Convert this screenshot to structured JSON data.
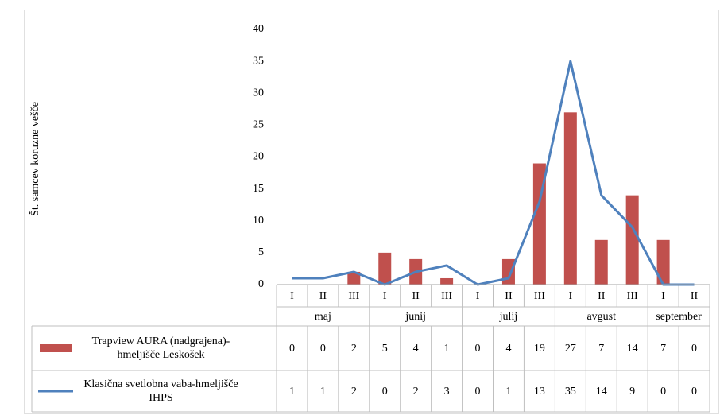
{
  "chart_data": {
    "type": "bar_line_table",
    "y_axis_label": "Št. samcev koruzne vešče",
    "groups": [
      {
        "name": "maj",
        "categories": [
          "I",
          "II",
          "III"
        ]
      },
      {
        "name": "junij",
        "categories": [
          "I",
          "II",
          "III"
        ]
      },
      {
        "name": "julij",
        "categories": [
          "I",
          "II",
          "III"
        ]
      },
      {
        "name": "avgust",
        "categories": [
          "I",
          "II",
          "III"
        ]
      },
      {
        "name": "september",
        "categories": [
          "I",
          "II"
        ]
      }
    ],
    "series": [
      {
        "name": "Trapview AURA (nadgrajena)-hmeljišče Leskošek",
        "type": "bar",
        "color": "#c0504d",
        "values": [
          0,
          0,
          2,
          5,
          4,
          1,
          0,
          4,
          19,
          27,
          7,
          14,
          7,
          0
        ]
      },
      {
        "name": "Klasična svetlobna vaba-hmeljišče IHPS",
        "type": "line",
        "color": "#4f81bd",
        "values": [
          1,
          1,
          2,
          0,
          2,
          3,
          0,
          1,
          13,
          35,
          14,
          9,
          0,
          0
        ]
      }
    ],
    "ylim": [
      0,
      40
    ],
    "yticks": [
      0,
      5,
      10,
      15,
      20,
      25,
      30,
      35,
      40
    ]
  }
}
